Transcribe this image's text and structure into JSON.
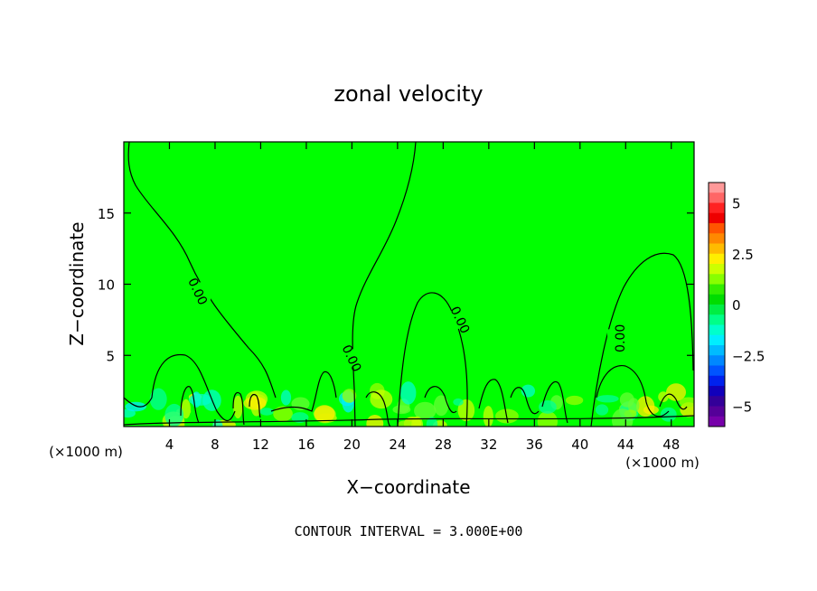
{
  "chart_data": {
    "type": "heatmap",
    "title": "zonal velocity",
    "xlabel": "X−coordinate",
    "ylabel": "Z−coordinate",
    "x_unit_left": "(×1000 m)",
    "x_unit_right": "(×1000 m)",
    "xlim": [
      0,
      50
    ],
    "ylim": [
      0,
      20
    ],
    "x_ticks": [
      4,
      8,
      12,
      16,
      20,
      24,
      28,
      32,
      36,
      40,
      44,
      48
    ],
    "y_ticks": [
      5,
      10,
      15
    ],
    "footnote": "CONTOUR INTERVAL = 3.000E+00",
    "contour_label": "0.00",
    "contour_label_positions": [
      [
        6.5,
        9.5
      ],
      [
        20.0,
        4.8
      ],
      [
        29.5,
        7.5
      ],
      [
        43.5,
        6.2
      ]
    ],
    "colorbar": {
      "range": [
        -6,
        6
      ],
      "tick_values": [
        5,
        2.5,
        0,
        -2.5,
        -5
      ],
      "tick_labels": [
        "5",
        "2.5",
        "0",
        "−2.5",
        "−5"
      ],
      "colors_top_to_bottom": [
        "#ff9999",
        "#ff6666",
        "#ff2222",
        "#ee0000",
        "#ff5500",
        "#ff8800",
        "#ffbb00",
        "#ffee00",
        "#ccff00",
        "#88ff00",
        "#33ee00",
        "#00dd00",
        "#00ee44",
        "#00ff88",
        "#00ffcc",
        "#00eeff",
        "#00bbff",
        "#0088ff",
        "#0055ff",
        "#0022ee",
        "#1100bb",
        "#330099",
        "#550099",
        "#7700aa"
      ]
    },
    "background_color": "#00ff00"
  }
}
